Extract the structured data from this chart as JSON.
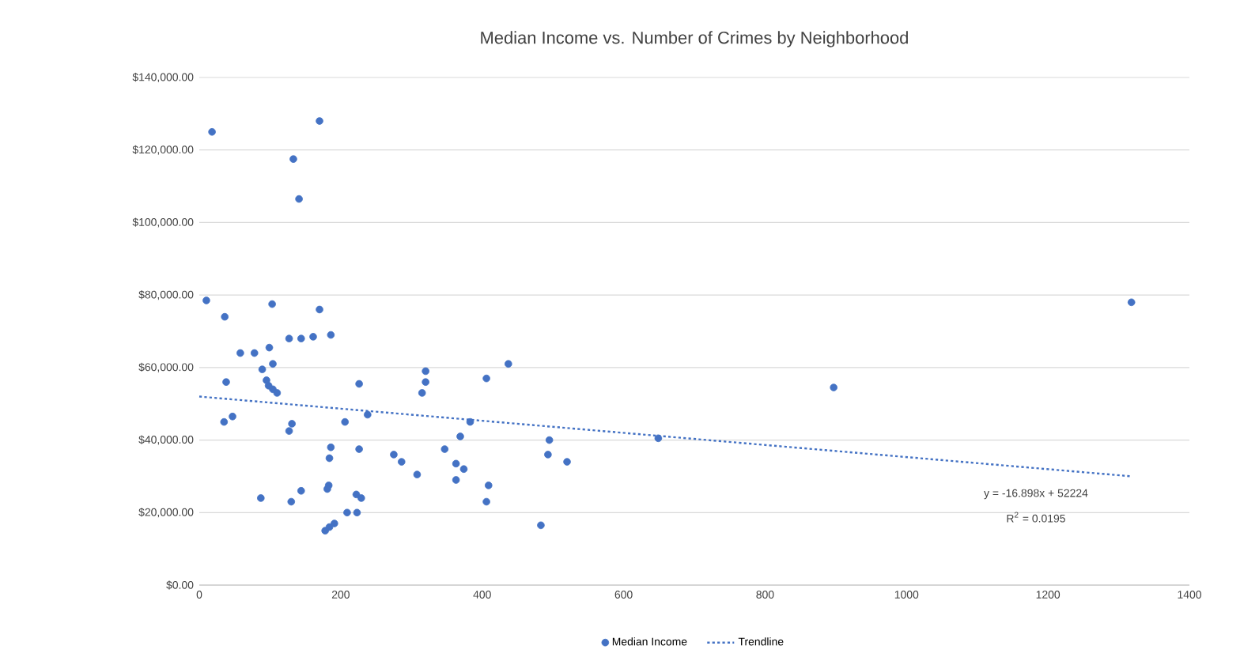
{
  "chart_data": {
    "type": "scatter",
    "title": "Median Income vs. Number of Crimes by Neighborhood",
    "xlim": [
      0,
      1400
    ],
    "xticks": [
      0,
      200,
      400,
      600,
      800,
      1000,
      1200,
      1400
    ],
    "ylim": [
      0,
      140000
    ],
    "yticks": [
      {
        "value": 0,
        "label": "$0.00"
      },
      {
        "value": 20000,
        "label": "$20,000.00"
      },
      {
        "value": 40000,
        "label": "$40,000.00"
      },
      {
        "value": 60000,
        "label": "$60,000.00"
      },
      {
        "value": 80000,
        "label": "$80,000.00"
      },
      {
        "value": 100000,
        "label": "$100,000.00"
      },
      {
        "value": 120000,
        "label": "$120,000.00"
      },
      {
        "value": 140000,
        "label": "$140,000.00"
      }
    ],
    "grid": "y",
    "legend": "bottom",
    "series": [
      {
        "name": "Median Income",
        "color": "#4472c4",
        "marker": "circle",
        "x": [
          10,
          36,
          103,
          170,
          58,
          78,
          99,
          127,
          144,
          161,
          186,
          89,
          104,
          38,
          95,
          98,
          104,
          110,
          35,
          47,
          131,
          127,
          87,
          130,
          144,
          186,
          184,
          183,
          181,
          178,
          184,
          191,
          226,
          206,
          238,
          226,
          222,
          229,
          209,
          223,
          275,
          286,
          308,
          315,
          320,
          320,
          347,
          369,
          363,
          374,
          363,
          383,
          406,
          437,
          409,
          406,
          483,
          495,
          493,
          520,
          649,
          897,
          18,
          170,
          133,
          141,
          1318
        ],
        "values": [
          78500,
          74000,
          77500,
          76000,
          64000,
          64000,
          65500,
          68000,
          68000,
          68500,
          69000,
          59500,
          61000,
          56000,
          56500,
          55000,
          54000,
          53000,
          45000,
          46500,
          44500,
          42500,
          24000,
          23000,
          26000,
          38000,
          35000,
          27500,
          26500,
          15000,
          16000,
          17000,
          55500,
          45000,
          47000,
          37500,
          25000,
          24000,
          20000,
          20000,
          36000,
          34000,
          30500,
          53000,
          59000,
          56000,
          37500,
          41000,
          33500,
          32000,
          29000,
          45000,
          57000,
          61000,
          27500,
          23000,
          16500,
          40000,
          36000,
          34000,
          40500,
          54500,
          125000,
          128000,
          117500,
          106500,
          78000
        ]
      },
      {
        "name": "Trendline",
        "type": "line",
        "color": "#4472c4",
        "line_style": "dotted",
        "marker": "none",
        "x": [
          0,
          1318
        ],
        "values": [
          52000,
          30000
        ]
      }
    ],
    "annotations": [
      "y = -16.898x + 52224",
      "R$^{2}$ = 0.0195"
    ]
  }
}
